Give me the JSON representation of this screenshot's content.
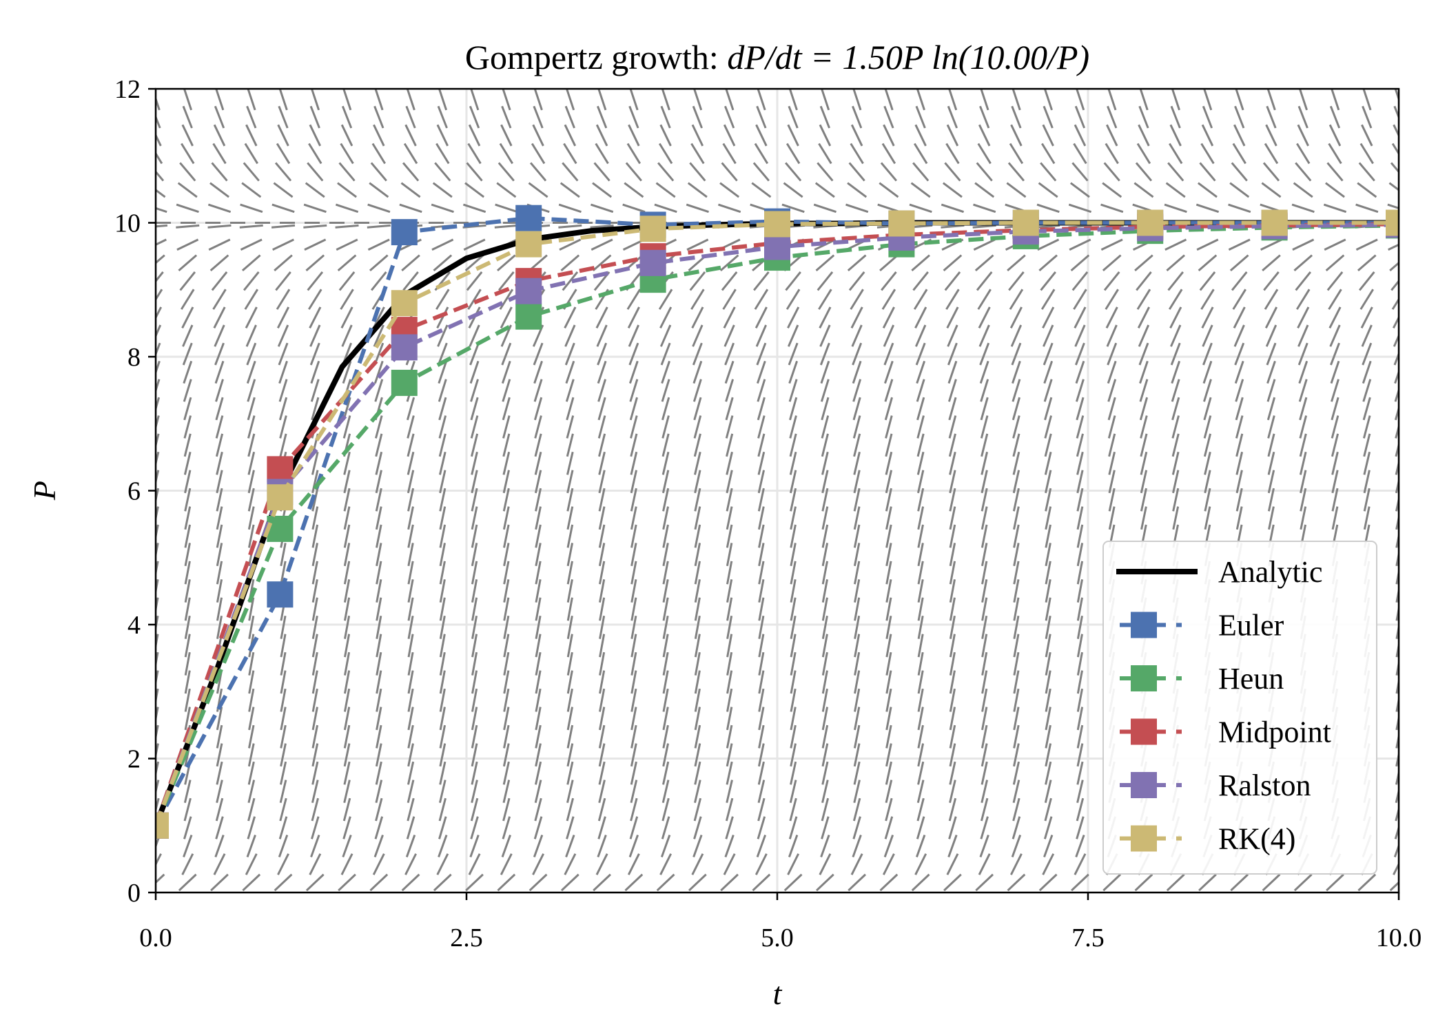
{
  "chart_data": {
    "type": "line",
    "title": {
      "prefix": "Gompertz growth: ",
      "math": "dP/dt = 1.50P ln(10.00/P)"
    },
    "xlabel": "t",
    "ylabel": "P",
    "xlim": [
      0,
      10
    ],
    "ylim": [
      0,
      12
    ],
    "xticks": [
      "0.0",
      "2.5",
      "5.0",
      "7.5",
      "10.0"
    ],
    "xtick_values": [
      0,
      2.5,
      5,
      7.5,
      10
    ],
    "yticks": [
      "0",
      "2",
      "4",
      "6",
      "8",
      "10",
      "12"
    ],
    "ytick_values": [
      0,
      2,
      4,
      6,
      8,
      10,
      12
    ],
    "grid": true,
    "legend_position": "lower-right",
    "slope_field": {
      "r": 1.5,
      "K": 10,
      "color": "#808080",
      "equilibrium": 10
    },
    "analytic": {
      "name": "Analytic",
      "color": "#000000",
      "x": [
        0,
        0.5,
        1,
        1.5,
        2,
        2.5,
        3,
        3.5,
        4,
        4.5,
        5,
        5.5,
        6,
        6.5,
        7,
        7.5,
        8,
        8.5,
        9,
        9.5,
        10
      ],
      "y": [
        1,
        3.37,
        5.98,
        7.85,
        8.92,
        9.47,
        9.75,
        9.88,
        9.94,
        9.97,
        9.99,
        9.99,
        10,
        10,
        10,
        10,
        10,
        10,
        10,
        10,
        10
      ]
    },
    "x": [
      0,
      1,
      2,
      3,
      4,
      5,
      6,
      7,
      8,
      9,
      10
    ],
    "series": [
      {
        "name": "Euler",
        "color": "#4C72B0",
        "values": [
          1,
          4.45,
          9.86,
          10.07,
          9.97,
          10.02,
          9.99,
          10.0,
          10.0,
          10.0,
          10.0
        ]
      },
      {
        "name": "Heun",
        "color": "#55A868",
        "values": [
          1,
          5.43,
          7.61,
          8.6,
          9.15,
          9.48,
          9.68,
          9.8,
          9.88,
          9.93,
          9.96
        ]
      },
      {
        "name": "Midpoint",
        "color": "#C44E52",
        "values": [
          1,
          6.32,
          8.4,
          9.13,
          9.5,
          9.7,
          9.82,
          9.89,
          9.94,
          9.96,
          9.98
        ]
      },
      {
        "name": "Ralston",
        "color": "#8172B2",
        "values": [
          1,
          5.98,
          8.14,
          8.98,
          9.4,
          9.64,
          9.78,
          9.87,
          9.92,
          9.95,
          9.97
        ]
      },
      {
        "name": "RK(4)",
        "color": "#CCB974",
        "values": [
          1,
          5.9,
          8.8,
          9.68,
          9.91,
          9.98,
          9.99,
          10.0,
          10.0,
          10.0,
          10.0
        ]
      }
    ]
  }
}
